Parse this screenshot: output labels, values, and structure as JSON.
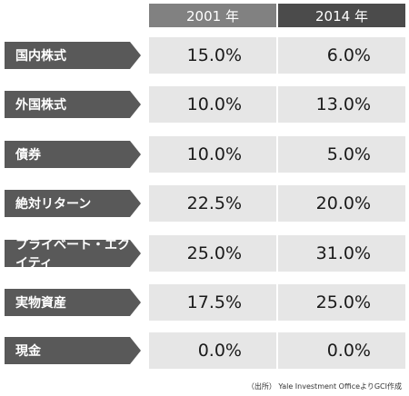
{
  "chart_data": {
    "type": "table",
    "columns": [
      "2001 年",
      "2014 年"
    ],
    "rows": [
      {
        "label": "国内株式",
        "values": [
          "15.0%",
          "6.0%"
        ]
      },
      {
        "label": "外国株式",
        "values": [
          "10.0%",
          "13.0%"
        ]
      },
      {
        "label": "債券",
        "values": [
          "10.0%",
          "5.0%"
        ]
      },
      {
        "label": "絶対リターン",
        "values": [
          "22.5%",
          "20.0%"
        ]
      },
      {
        "label": "プライベート・エクイティ",
        "values": [
          "25.0%",
          "31.0%"
        ]
      },
      {
        "label": "実物資産",
        "values": [
          "17.5%",
          "25.0%"
        ]
      },
      {
        "label": "現金",
        "values": [
          "0.0%",
          "0.0%"
        ]
      }
    ]
  },
  "source": "（出所） Yale Investment OfficeよりGCI作成"
}
